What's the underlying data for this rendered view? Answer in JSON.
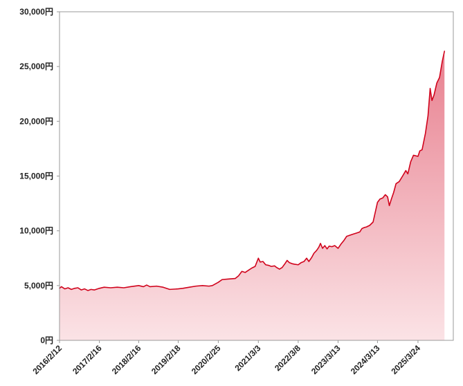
{
  "chart_data": {
    "type": "area",
    "title": "",
    "xlabel": "",
    "ylabel": "",
    "ylim": [
      0,
      30000
    ],
    "grid": false,
    "colors": {
      "line": "#d0021b",
      "fill_top": "#e8808f",
      "fill_bottom": "#fbe3e6",
      "axis": "#999999"
    },
    "y_ticks": [
      {
        "value": 0,
        "label": "0円"
      },
      {
        "value": 5000,
        "label": "5,000円"
      },
      {
        "value": 10000,
        "label": "10,000円"
      },
      {
        "value": 15000,
        "label": "15,000円"
      },
      {
        "value": 20000,
        "label": "20,000円"
      },
      {
        "value": 25000,
        "label": "25,000円"
      },
      {
        "value": 30000,
        "label": "30,000円"
      }
    ],
    "x_range": [
      "2016/2/12",
      "2026/2/15"
    ],
    "x_ticks": [
      {
        "date": "2016/2/12",
        "label": "2016/2/12"
      },
      {
        "date": "2017/2/16",
        "label": "2017/2/16"
      },
      {
        "date": "2018/2/16",
        "label": "2018/2/16"
      },
      {
        "date": "2019/2/18",
        "label": "2019/2/18"
      },
      {
        "date": "2020/2/25",
        "label": "2020/2/25"
      },
      {
        "date": "2021/3/3",
        "label": "2021/3/3"
      },
      {
        "date": "2022/3/8",
        "label": "2022/3/8"
      },
      {
        "date": "2023/3/13",
        "label": "2023/3/13"
      },
      {
        "date": "2024/3/13",
        "label": "2024/3/13"
      },
      {
        "date": "2025/3/24",
        "label": "2025/3/24"
      }
    ],
    "series": [
      {
        "points": [
          [
            "2016/2/12",
            4750
          ],
          [
            "2016/3/1",
            4900
          ],
          [
            "2016/4/1",
            4700
          ],
          [
            "2016/5/1",
            4800
          ],
          [
            "2016/6/1",
            4650
          ],
          [
            "2016/7/1",
            4750
          ],
          [
            "2016/8/1",
            4800
          ],
          [
            "2016/9/1",
            4600
          ],
          [
            "2016/10/1",
            4700
          ],
          [
            "2016/11/1",
            4550
          ],
          [
            "2016/12/1",
            4650
          ],
          [
            "2017/1/1",
            4600
          ],
          [
            "2017/2/16",
            4750
          ],
          [
            "2017/4/1",
            4850
          ],
          [
            "2017/6/1",
            4800
          ],
          [
            "2017/8/1",
            4850
          ],
          [
            "2017/10/1",
            4800
          ],
          [
            "2017/12/1",
            4900
          ],
          [
            "2018/2/16",
            5000
          ],
          [
            "2018/4/1",
            4900
          ],
          [
            "2018/5/1",
            5050
          ],
          [
            "2018/6/1",
            4900
          ],
          [
            "2018/8/1",
            4950
          ],
          [
            "2018/10/1",
            4850
          ],
          [
            "2018/12/1",
            4650
          ],
          [
            "2019/2/18",
            4700
          ],
          [
            "2019/4/1",
            4750
          ],
          [
            "2019/6/1",
            4850
          ],
          [
            "2019/8/1",
            4950
          ],
          [
            "2019/10/1",
            5000
          ],
          [
            "2019/12/1",
            4950
          ],
          [
            "2020/1/1",
            5000
          ],
          [
            "2020/2/25",
            5300
          ],
          [
            "2020/4/1",
            5550
          ],
          [
            "2020/6/1",
            5600
          ],
          [
            "2020/8/1",
            5650
          ],
          [
            "2020/9/1",
            5900
          ],
          [
            "2020/10/1",
            6300
          ],
          [
            "2020/11/1",
            6200
          ],
          [
            "2020/12/1",
            6400
          ],
          [
            "2021/1/1",
            6600
          ],
          [
            "2021/2/1",
            6750
          ],
          [
            "2021/3/3",
            7500
          ],
          [
            "2021/3/20",
            7150
          ],
          [
            "2021/4/15",
            7200
          ],
          [
            "2021/5/10",
            6900
          ],
          [
            "2021/6/5",
            6850
          ],
          [
            "2021/7/1",
            6750
          ],
          [
            "2021/8/1",
            6800
          ],
          [
            "2021/8/20",
            6650
          ],
          [
            "2021/9/15",
            6500
          ],
          [
            "2021/10/10",
            6650
          ],
          [
            "2021/11/5",
            7000
          ],
          [
            "2021/11/25",
            7300
          ],
          [
            "2021/12/15",
            7100
          ],
          [
            "2022/1/10",
            7000
          ],
          [
            "2022/2/1",
            6950
          ],
          [
            "2022/3/8",
            6900
          ],
          [
            "2022/4/5",
            7100
          ],
          [
            "2022/5/1",
            7200
          ],
          [
            "2022/5/25",
            7500
          ],
          [
            "2022/6/15",
            7200
          ],
          [
            "2022/7/10",
            7550
          ],
          [
            "2022/8/1",
            7950
          ],
          [
            "2022/8/25",
            8200
          ],
          [
            "2022/9/15",
            8500
          ],
          [
            "2022/10/1",
            8850
          ],
          [
            "2022/10/20",
            8400
          ],
          [
            "2022/11/10",
            8650
          ],
          [
            "2022/12/1",
            8350
          ],
          [
            "2022/12/20",
            8600
          ],
          [
            "2023/1/15",
            8550
          ],
          [
            "2023/2/10",
            8650
          ],
          [
            "2023/3/13",
            8400
          ],
          [
            "2023/4/10",
            8800
          ],
          [
            "2023/5/5",
            9100
          ],
          [
            "2023/6/1",
            9500
          ],
          [
            "2023/7/1",
            9600
          ],
          [
            "2023/8/1",
            9700
          ],
          [
            "2023/9/1",
            9800
          ],
          [
            "2023/10/1",
            9900
          ],
          [
            "2023/10/20",
            10200
          ],
          [
            "2023/11/10",
            10300
          ],
          [
            "2023/12/1",
            10350
          ],
          [
            "2024/1/1",
            10500
          ],
          [
            "2024/2/1",
            10800
          ],
          [
            "2024/3/13",
            12600
          ],
          [
            "2024/4/5",
            12900
          ],
          [
            "2024/5/1",
            13000
          ],
          [
            "2024/5/25",
            13300
          ],
          [
            "2024/6/15",
            13100
          ],
          [
            "2024/7/1",
            12300
          ],
          [
            "2024/7/20",
            12900
          ],
          [
            "2024/8/10",
            13500
          ],
          [
            "2024/9/1",
            14300
          ],
          [
            "2024/10/1",
            14500
          ],
          [
            "2024/11/1",
            15000
          ],
          [
            "2024/12/1",
            15500
          ],
          [
            "2024/12/20",
            15200
          ],
          [
            "2025/1/15",
            16300
          ],
          [
            "2025/2/10",
            16900
          ],
          [
            "2025/3/24",
            16800
          ],
          [
            "2025/4/10",
            17300
          ],
          [
            "2025/5/1",
            17400
          ],
          [
            "2025/6/1",
            18900
          ],
          [
            "2025/6/25",
            20500
          ],
          [
            "2025/7/15",
            23000
          ],
          [
            "2025/8/1",
            21900
          ],
          [
            "2025/8/20",
            22400
          ],
          [
            "2025/9/15",
            23500
          ],
          [
            "2025/10/10",
            24000
          ],
          [
            "2025/11/5",
            25500
          ],
          [
            "2025/11/25",
            26400
          ]
        ]
      }
    ]
  }
}
